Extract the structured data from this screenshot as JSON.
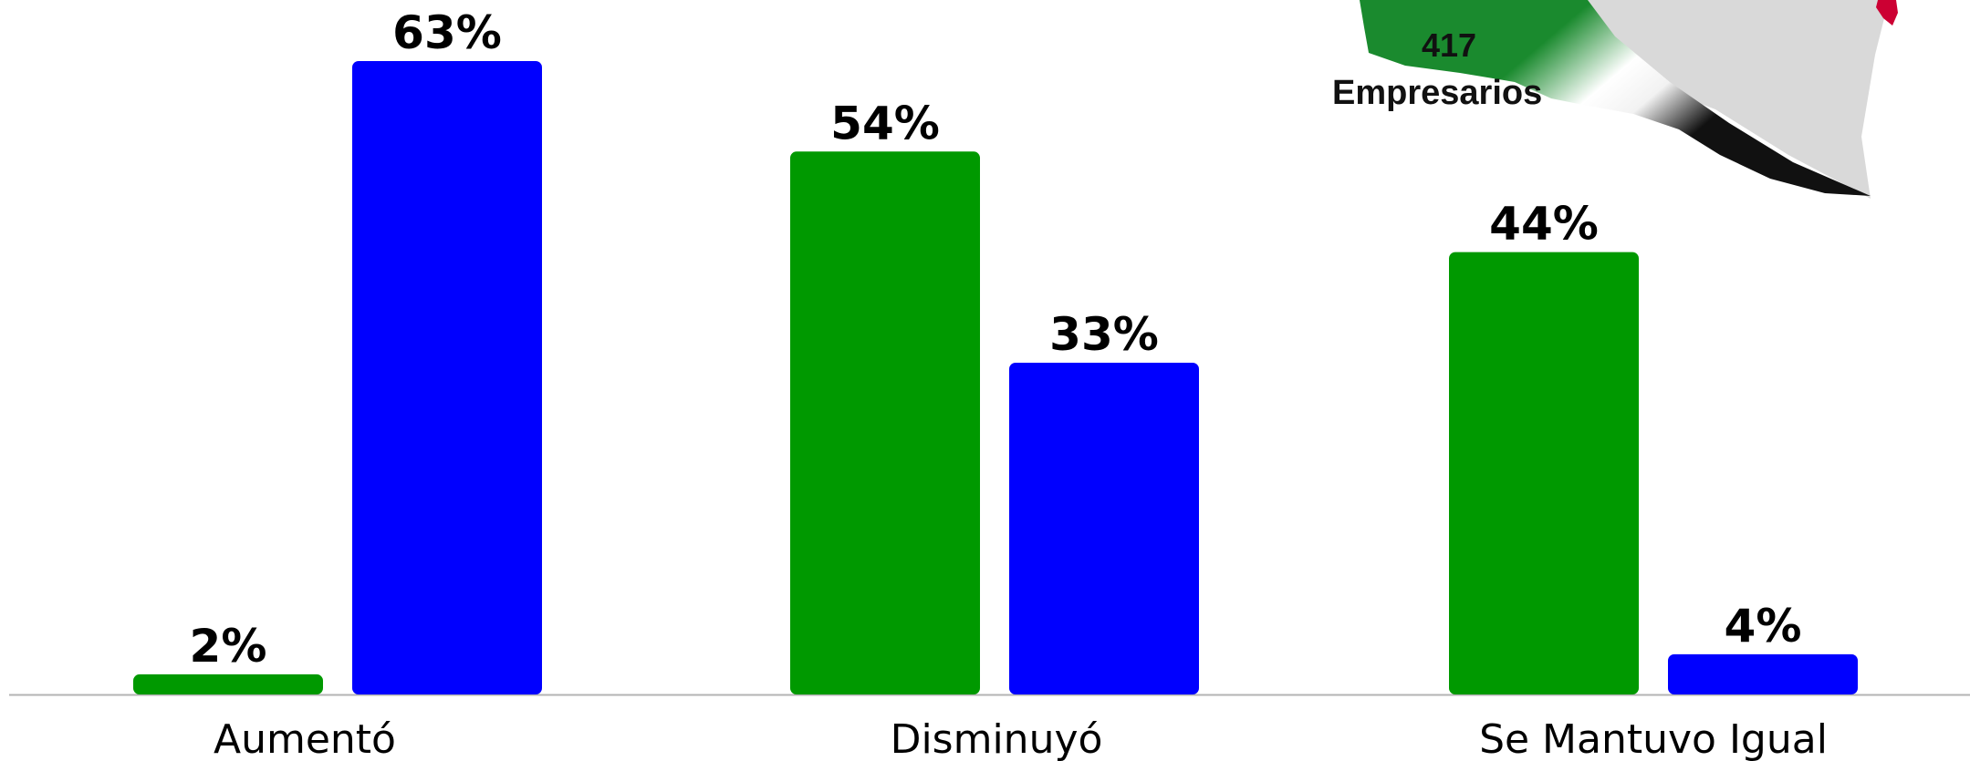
{
  "chart_data": {
    "type": "bar",
    "categories": [
      "Aumentó",
      "Disminuyó",
      "Se Mantuvo Igual"
    ],
    "series": [
      {
        "values": [
          2,
          54,
          44
        ],
        "labels": [
          "2%",
          "54%",
          "44%"
        ],
        "color": "#009900"
      },
      {
        "values": [
          63,
          33,
          4
        ],
        "labels": [
          "63%",
          "33%",
          "4%"
        ],
        "color": "#0000ff"
      }
    ],
    "ylim": [
      0,
      63
    ],
    "grid": false,
    "legend": "none"
  },
  "map_badge": {
    "count": "417",
    "caption": "Empresarios",
    "colors": [
      "#1a8a2e",
      "#ffffff",
      "#111111",
      "#d9d9d9",
      "#cc0033"
    ]
  },
  "colors": {
    "baseline": "#b3b3b3"
  }
}
